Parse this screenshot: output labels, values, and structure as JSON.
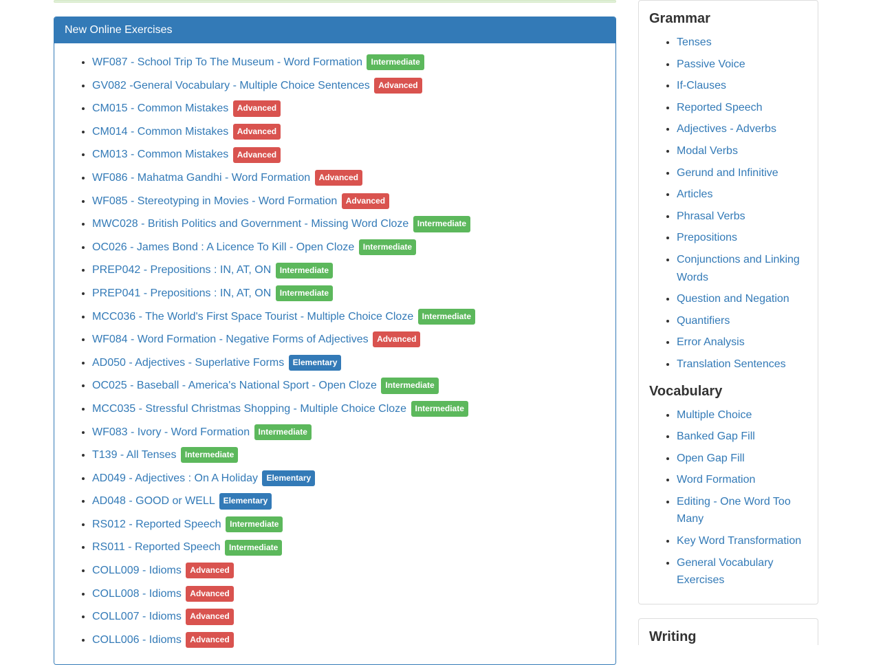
{
  "panel": {
    "title": "New Online Exercises"
  },
  "badges": {
    "intermediate": "Intermediate",
    "advanced": "Advanced",
    "elementary": "Elementary"
  },
  "exercises": [
    {
      "title": "WF087 - School Trip To The Museum - Word Formation",
      "level": "intermediate"
    },
    {
      "title": "GV082 -General Vocabulary - Multiple Choice Sentences",
      "level": "advanced"
    },
    {
      "title": "CM015 - Common Mistakes",
      "level": "advanced"
    },
    {
      "title": "CM014 - Common Mistakes",
      "level": "advanced"
    },
    {
      "title": "CM013 - Common Mistakes",
      "level": "advanced"
    },
    {
      "title": "WF086 - Mahatma Gandhi - Word Formation",
      "level": "advanced"
    },
    {
      "title": "WF085 - Stereotyping in Movies - Word Formation",
      "level": "advanced"
    },
    {
      "title": "MWC028 - British Politics and Government - Missing Word Cloze",
      "level": "intermediate"
    },
    {
      "title": "OC026 - James Bond : A Licence To Kill - Open Cloze",
      "level": "intermediate"
    },
    {
      "title": "PREP042 - Prepositions : IN, AT, ON",
      "level": "intermediate"
    },
    {
      "title": "PREP041 - Prepositions : IN, AT, ON",
      "level": "intermediate"
    },
    {
      "title": "MCC036 - The World's First Space Tourist - Multiple Choice Cloze",
      "level": "intermediate"
    },
    {
      "title": "WF084 - Word Formation - Negative Forms of Adjectives",
      "level": "advanced"
    },
    {
      "title": "AD050 - Adjectives - Superlative Forms",
      "level": "elementary"
    },
    {
      "title": "OC025 - Baseball - America's National Sport - Open Cloze",
      "level": "intermediate"
    },
    {
      "title": "MCC035 - Stressful Christmas Shopping - Multiple Choice Cloze",
      "level": "intermediate"
    },
    {
      "title": "WF083 - Ivory - Word Formation",
      "level": "intermediate"
    },
    {
      "title": "T139 - All Tenses",
      "level": "intermediate"
    },
    {
      "title": "AD049 - Adjectives : On A Holiday",
      "level": "elementary"
    },
    {
      "title": "AD048 - GOOD or WELL",
      "level": "elementary"
    },
    {
      "title": "RS012 - Reported Speech",
      "level": "intermediate"
    },
    {
      "title": "RS011 - Reported Speech",
      "level": "intermediate"
    },
    {
      "title": "COLL009 - Idioms",
      "level": "advanced"
    },
    {
      "title": "COLL008 - Idioms",
      "level": "advanced"
    },
    {
      "title": "COLL007 - Idioms",
      "level": "advanced"
    },
    {
      "title": "COLL006 - Idioms",
      "level": "advanced"
    }
  ],
  "sidebar": {
    "sections": [
      {
        "heading": "Grammar",
        "items": [
          "Tenses",
          "Passive Voice",
          "If-Clauses",
          "Reported Speech",
          "Adjectives - Adverbs",
          "Modal Verbs",
          "Gerund and Infinitive",
          "Articles",
          "Phrasal Verbs",
          "Prepositions",
          "Conjunctions and Linking Words",
          "Question and Negation",
          "Quantifiers",
          "Error Analysis",
          "Translation Sentences"
        ]
      },
      {
        "heading": "Vocabulary",
        "items": [
          "Multiple Choice",
          "Banked Gap Fill",
          "Open Gap Fill",
          "Word Formation",
          "Editing - One Word Too Many",
          "Key Word Transformation",
          "General Vocabulary Exercises"
        ]
      }
    ],
    "partial_heading": "Writing"
  },
  "colors": {
    "primary": "#337ab7",
    "success": "#5cb85c",
    "danger": "#d9534f",
    "border": "#ddd"
  }
}
